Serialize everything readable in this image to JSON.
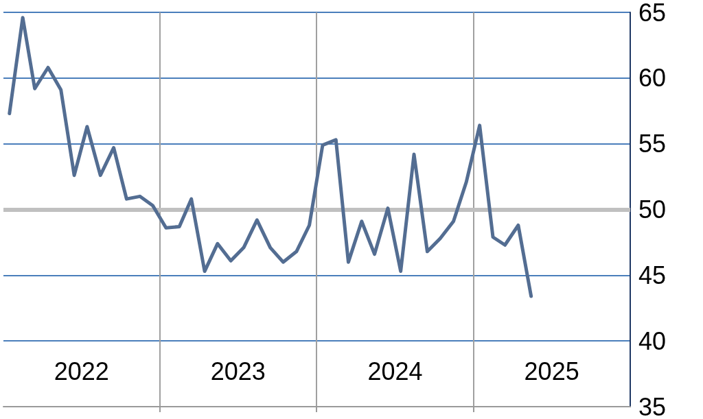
{
  "chart_data": {
    "type": "line",
    "x": [
      "2022-01-15",
      "2022-02-15",
      "2022-03-15",
      "2022-04-15",
      "2022-05-15",
      "2022-06-15",
      "2022-07-15",
      "2022-08-15",
      "2022-09-15",
      "2022-10-15",
      "2022-11-15",
      "2022-12-15",
      "2023-01-15",
      "2023-02-15",
      "2023-03-15",
      "2023-04-15",
      "2023-05-15",
      "2023-06-15",
      "2023-07-15",
      "2023-08-15",
      "2023-09-15",
      "2023-10-15",
      "2023-11-15",
      "2023-12-15",
      "2024-01-15",
      "2024-02-15",
      "2024-03-15",
      "2024-04-15",
      "2024-05-15",
      "2024-06-15",
      "2024-07-15",
      "2024-08-15",
      "2024-09-15",
      "2024-10-15",
      "2024-11-15",
      "2024-12-15",
      "2025-01-15",
      "2025-02-15",
      "2025-03-15",
      "2025-04-15",
      "2025-05-15"
    ],
    "series": [
      {
        "color": "#536d92",
        "values": [
          57.3,
          64.6,
          59.2,
          60.8,
          59.1,
          52.6,
          56.3,
          52.6,
          54.7,
          50.8,
          51.0,
          50.3,
          48.6,
          48.7,
          50.8,
          45.3,
          47.4,
          46.1,
          47.1,
          49.2,
          47.1,
          46.0,
          46.8,
          48.8,
          54.9,
          55.3,
          46.0,
          49.1,
          46.6,
          50.1,
          45.3,
          54.2,
          46.8,
          47.8,
          49.1,
          52.1,
          56.4,
          47.9,
          47.3,
          48.8,
          43.4
        ]
      }
    ],
    "xlim": [
      "2022-01-01",
      "2026-01-01"
    ],
    "xticks": [
      {
        "value": "2023-01-01",
        "label": null
      },
      {
        "value": "2024-01-01",
        "label": null
      },
      {
        "value": "2025-01-01",
        "label": null
      },
      {
        "value": "2022-07-02",
        "label": "2022"
      },
      {
        "value": "2023-07-02",
        "label": "2023"
      },
      {
        "value": "2024-07-02",
        "label": "2024"
      },
      {
        "value": "2025-07-02",
        "label": "2025"
      }
    ],
    "ylim": [
      35,
      65
    ],
    "yticks": [
      35,
      40,
      45,
      50,
      55,
      60,
      65
    ],
    "ref_lines": [
      {
        "axis": "y",
        "value": 50,
        "color": "#c0c0c0"
      }
    ],
    "grid": true,
    "marker": "none",
    "line_style": "solid"
  }
}
